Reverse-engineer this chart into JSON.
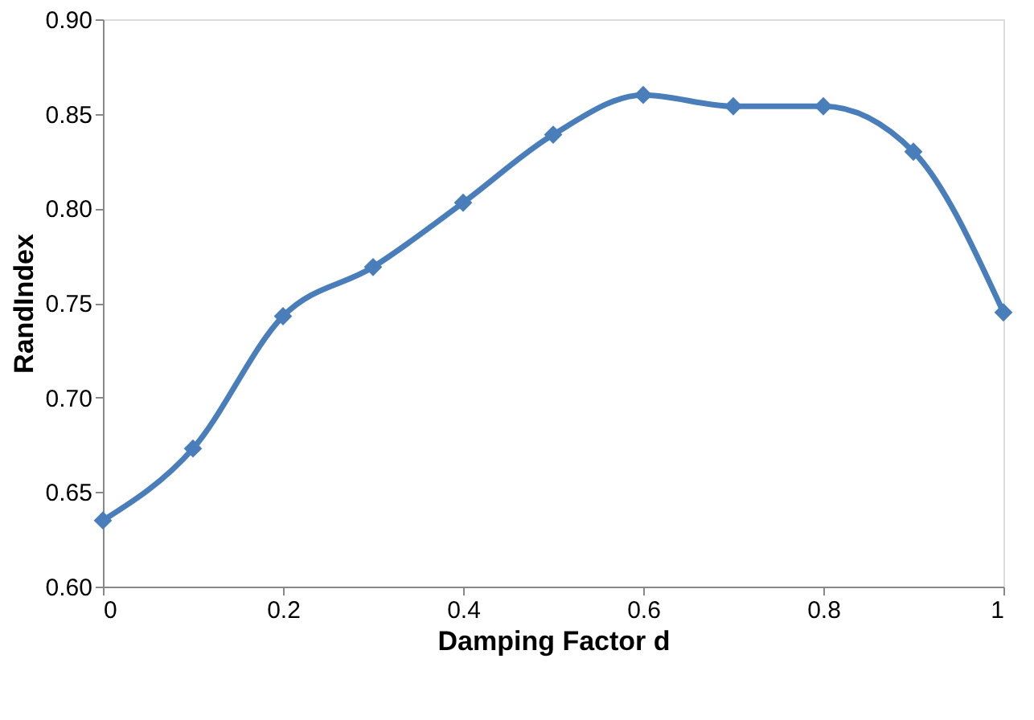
{
  "chart_data": {
    "type": "line",
    "xlabel": "Damping Factor d",
    "ylabel": "RandIndex",
    "x": [
      0,
      0.1,
      0.2,
      0.3,
      0.4,
      0.5,
      0.6,
      0.7,
      0.8,
      0.9,
      1.0
    ],
    "series": [
      {
        "color": "#4a7ebb",
        "values": [
          0.635,
          0.673,
          0.743,
          0.769,
          0.803,
          0.839,
          0.86,
          0.854,
          0.854,
          0.83,
          0.745
        ]
      }
    ],
    "xlim": [
      0,
      1
    ],
    "xticks": [
      0,
      0.2,
      0.4,
      0.6,
      0.8,
      1
    ],
    "ylim": [
      0.6,
      0.9
    ],
    "yticks": [
      {
        "value": 0.6,
        "label": "0.60"
      },
      {
        "value": 0.65,
        "label": "0.65"
      },
      {
        "value": 0.7,
        "label": "0.70"
      },
      {
        "value": 0.75,
        "label": "0.75"
      },
      {
        "value": 0.8,
        "label": "0.80"
      },
      {
        "value": 0.85,
        "label": "0.85"
      },
      {
        "value": 0.9,
        "label": "0.90"
      }
    ],
    "grid": false,
    "marker": "diamond",
    "line_style": "solid"
  }
}
